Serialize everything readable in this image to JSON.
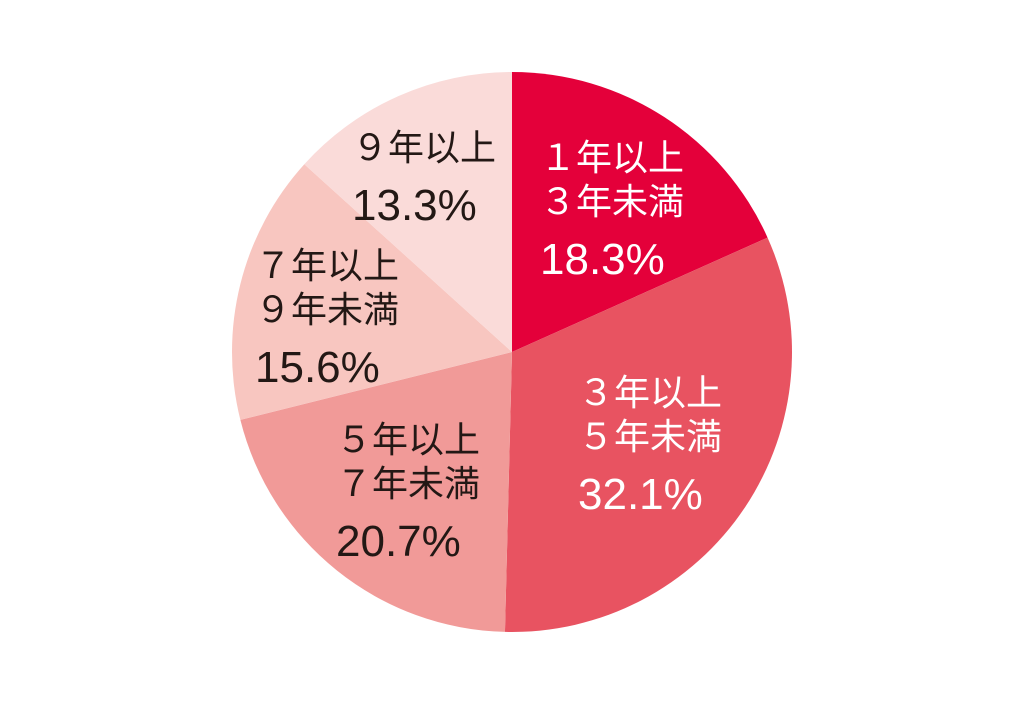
{
  "chart_data": {
    "type": "pie",
    "start_angle_deg": 0,
    "direction": "clockwise",
    "slices": [
      {
        "label_lines": [
          "１年以上",
          "３年未満"
        ],
        "value": 18.3,
        "value_text": "18.3%",
        "color": "#e4003a",
        "text_color": "#ffffff"
      },
      {
        "label_lines": [
          "３年以上",
          "５年未満"
        ],
        "value": 32.1,
        "value_text": "32.1%",
        "color": "#e85361",
        "text_color": "#ffffff"
      },
      {
        "label_lines": [
          "５年以上",
          "７年未満"
        ],
        "value": 20.7,
        "value_text": "20.7%",
        "color": "#f19a98",
        "text_color": "#231815"
      },
      {
        "label_lines": [
          "７年以上",
          "９年未満"
        ],
        "value": 15.6,
        "value_text": "15.6%",
        "color": "#f8c6c0",
        "text_color": "#231815"
      },
      {
        "label_lines": [
          "９年以上"
        ],
        "value": 13.3,
        "value_text": "13.3%",
        "color": "#fadbd9",
        "text_color": "#231815"
      }
    ]
  }
}
